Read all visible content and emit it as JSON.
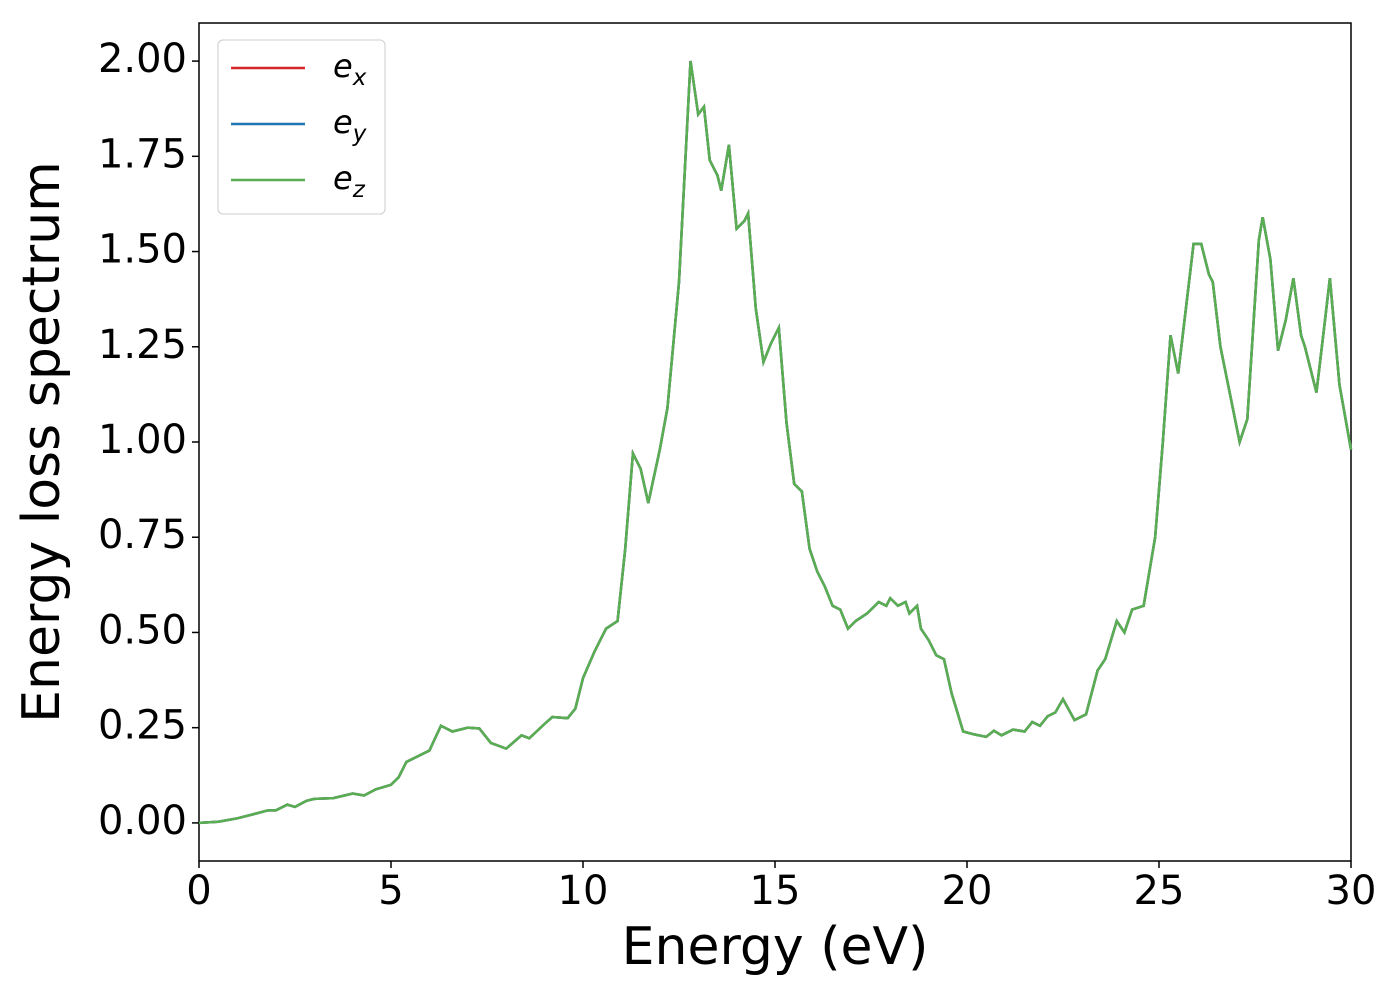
{
  "chart_data": {
    "type": "line",
    "xlabel": "Energy (eV)",
    "ylabel": "Energy loss spectrum",
    "x": [
      0,
      0.5,
      1.0,
      1.5,
      1.8,
      2.0,
      2.3,
      2.5,
      2.8,
      3.0,
      3.5,
      4.0,
      4.3,
      4.6,
      5.0,
      5.2,
      5.4,
      5.7,
      6.0,
      6.3,
      6.6,
      7.0,
      7.3,
      7.6,
      8.0,
      8.4,
      8.6,
      9.0,
      9.2,
      9.6,
      9.8,
      10.0,
      10.3,
      10.6,
      10.9,
      11.1,
      11.3,
      11.5,
      11.7,
      12.0,
      12.2,
      12.5,
      12.8,
      13.0,
      13.15,
      13.3,
      13.5,
      13.6,
      13.8,
      14.0,
      14.2,
      14.3,
      14.5,
      14.7,
      14.9,
      15.1,
      15.3,
      15.5,
      15.7,
      15.9,
      16.1,
      16.3,
      16.5,
      16.7,
      16.9,
      17.1,
      17.4,
      17.7,
      17.9,
      18.0,
      18.2,
      18.4,
      18.5,
      18.7,
      18.8,
      19.0,
      19.2,
      19.4,
      19.6,
      19.9,
      20.2,
      20.5,
      20.7,
      20.9,
      21.2,
      21.5,
      21.7,
      21.9,
      22.1,
      22.3,
      22.5,
      22.8,
      23.1,
      23.4,
      23.6,
      23.9,
      24.1,
      24.3,
      24.6,
      24.9,
      25.1,
      25.3,
      25.5,
      25.7,
      25.9,
      26.1,
      26.3,
      26.4,
      26.6,
      26.8,
      27.1,
      27.3,
      27.6,
      27.7,
      27.9,
      28.1,
      28.3,
      28.5,
      28.7,
      28.8,
      29.1,
      29.3,
      29.45,
      29.7,
      30
    ],
    "series": [
      {
        "name": "e_x",
        "color": "#d62728",
        "values": [
          0,
          0.003,
          0.012,
          0.025,
          0.033,
          0.033,
          0.048,
          0.042,
          0.058,
          0.063,
          0.065,
          0.077,
          0.072,
          0.088,
          0.1,
          0.12,
          0.16,
          0.175,
          0.19,
          0.255,
          0.24,
          0.25,
          0.248,
          0.21,
          0.195,
          0.23,
          0.222,
          0.26,
          0.278,
          0.275,
          0.3,
          0.38,
          0.45,
          0.51,
          0.53,
          0.72,
          0.97,
          0.93,
          0.84,
          0.98,
          1.09,
          1.42,
          2.0,
          1.86,
          1.88,
          1.74,
          1.7,
          1.66,
          1.78,
          1.56,
          1.58,
          1.6,
          1.35,
          1.21,
          1.26,
          1.3,
          1.05,
          0.89,
          0.87,
          0.72,
          0.66,
          0.62,
          0.57,
          0.56,
          0.51,
          0.53,
          0.55,
          0.58,
          0.57,
          0.59,
          0.57,
          0.58,
          0.55,
          0.57,
          0.51,
          0.48,
          0.44,
          0.43,
          0.34,
          0.24,
          0.232,
          0.226,
          0.242,
          0.23,
          0.245,
          0.24,
          0.265,
          0.255,
          0.28,
          0.29,
          0.325,
          0.27,
          0.285,
          0.4,
          0.43,
          0.53,
          0.5,
          0.56,
          0.57,
          0.75,
          1.0,
          1.28,
          1.18,
          1.35,
          1.52,
          1.52,
          1.44,
          1.42,
          1.25,
          1.15,
          1.0,
          1.06,
          1.53,
          1.59,
          1.48,
          1.24,
          1.32,
          1.43,
          1.28,
          1.25,
          1.13,
          1.3,
          1.43,
          1.15,
          0.98
        ]
      },
      {
        "name": "e_y",
        "color": "#1f77b4",
        "values": [
          0,
          0.003,
          0.012,
          0.025,
          0.033,
          0.033,
          0.048,
          0.042,
          0.058,
          0.063,
          0.065,
          0.077,
          0.072,
          0.088,
          0.1,
          0.12,
          0.16,
          0.175,
          0.19,
          0.255,
          0.24,
          0.25,
          0.248,
          0.21,
          0.195,
          0.23,
          0.222,
          0.26,
          0.278,
          0.275,
          0.3,
          0.38,
          0.45,
          0.51,
          0.53,
          0.72,
          0.97,
          0.93,
          0.84,
          0.98,
          1.09,
          1.42,
          2.0,
          1.86,
          1.88,
          1.74,
          1.7,
          1.66,
          1.78,
          1.56,
          1.58,
          1.6,
          1.35,
          1.21,
          1.26,
          1.3,
          1.05,
          0.89,
          0.87,
          0.72,
          0.66,
          0.62,
          0.57,
          0.56,
          0.51,
          0.53,
          0.55,
          0.58,
          0.57,
          0.59,
          0.57,
          0.58,
          0.55,
          0.57,
          0.51,
          0.48,
          0.44,
          0.43,
          0.34,
          0.24,
          0.232,
          0.226,
          0.242,
          0.23,
          0.245,
          0.24,
          0.265,
          0.255,
          0.28,
          0.29,
          0.325,
          0.27,
          0.285,
          0.4,
          0.43,
          0.53,
          0.5,
          0.56,
          0.57,
          0.75,
          1.0,
          1.28,
          1.18,
          1.35,
          1.52,
          1.52,
          1.44,
          1.42,
          1.25,
          1.15,
          1.0,
          1.06,
          1.53,
          1.59,
          1.48,
          1.24,
          1.32,
          1.43,
          1.28,
          1.25,
          1.13,
          1.3,
          1.43,
          1.15,
          0.98
        ]
      },
      {
        "name": "e_z",
        "color": "#5aae52",
        "values": [
          0,
          0.003,
          0.012,
          0.025,
          0.033,
          0.033,
          0.048,
          0.042,
          0.058,
          0.063,
          0.065,
          0.077,
          0.072,
          0.088,
          0.1,
          0.12,
          0.16,
          0.175,
          0.19,
          0.255,
          0.24,
          0.25,
          0.248,
          0.21,
          0.195,
          0.23,
          0.222,
          0.26,
          0.278,
          0.275,
          0.3,
          0.38,
          0.45,
          0.51,
          0.53,
          0.72,
          0.97,
          0.93,
          0.84,
          0.98,
          1.09,
          1.42,
          2.0,
          1.86,
          1.88,
          1.74,
          1.7,
          1.66,
          1.78,
          1.56,
          1.58,
          1.6,
          1.35,
          1.21,
          1.26,
          1.3,
          1.05,
          0.89,
          0.87,
          0.72,
          0.66,
          0.62,
          0.57,
          0.56,
          0.51,
          0.53,
          0.55,
          0.58,
          0.57,
          0.59,
          0.57,
          0.58,
          0.55,
          0.57,
          0.51,
          0.48,
          0.44,
          0.43,
          0.34,
          0.24,
          0.232,
          0.226,
          0.242,
          0.23,
          0.245,
          0.24,
          0.265,
          0.255,
          0.28,
          0.29,
          0.325,
          0.27,
          0.285,
          0.4,
          0.43,
          0.53,
          0.5,
          0.56,
          0.57,
          0.75,
          1.0,
          1.28,
          1.18,
          1.35,
          1.52,
          1.52,
          1.44,
          1.42,
          1.25,
          1.15,
          1.0,
          1.06,
          1.53,
          1.59,
          1.48,
          1.24,
          1.32,
          1.43,
          1.28,
          1.25,
          1.13,
          1.3,
          1.43,
          1.15,
          0.98
        ]
      }
    ],
    "xlim": [
      0,
      30
    ],
    "xticks": [
      0,
      5,
      10,
      15,
      20,
      25,
      30
    ],
    "ylim": [
      -0.1,
      2.1
    ],
    "yticks": [
      {
        "value": 0,
        "label": "0.00"
      },
      {
        "value": 0.25,
        "label": "0.25"
      },
      {
        "value": 0.5,
        "label": "0.50"
      },
      {
        "value": 0.75,
        "label": "0.75"
      },
      {
        "value": 1,
        "label": "1.00"
      },
      {
        "value": 1.25,
        "label": "1.25"
      },
      {
        "value": 1.5,
        "label": "1.50"
      },
      {
        "value": 1.75,
        "label": "1.75"
      },
      {
        "value": 2,
        "label": "2.00"
      }
    ],
    "legend": "upper left",
    "grid": false
  }
}
